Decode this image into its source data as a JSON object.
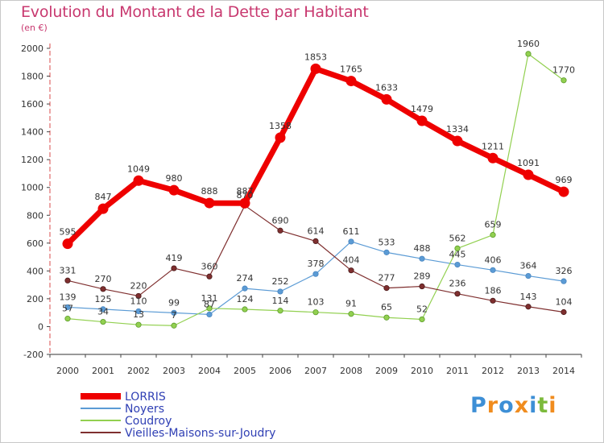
{
  "chart_data": {
    "type": "line",
    "title": "Evolution du Montant de la Dette par Habitant",
    "subtitle": "(en €)",
    "x": [
      "2000",
      "2001",
      "2002",
      "2003",
      "2004",
      "2005",
      "2006",
      "2007",
      "2008",
      "2009",
      "2010",
      "2011",
      "2012",
      "2013",
      "2014"
    ],
    "yticks": [
      "-200",
      "0",
      "200",
      "400",
      "600",
      "800",
      "1000",
      "1200",
      "1400",
      "1600",
      "1800",
      "2000"
    ],
    "ylim": [
      -200,
      2000
    ],
    "grid": false,
    "series": [
      {
        "name": "LORRIS",
        "color": "#ee0000",
        "values": [
          595,
          847,
          1049,
          980,
          888,
          887,
          1358,
          1853,
          1765,
          1633,
          1479,
          1334,
          1211,
          1091,
          969
        ],
        "labels": [
          "595",
          "847",
          "1049",
          "980",
          "888",
          "887",
          "1358",
          "1853",
          "1765",
          "1633",
          "1479",
          "1334",
          "1211",
          "1091",
          "969"
        ]
      },
      {
        "name": "Noyers",
        "color": "#5b9bd5",
        "values": [
          139,
          125,
          110,
          99,
          87,
          274,
          252,
          378,
          611,
          533,
          488,
          445,
          406,
          364,
          326
        ],
        "labels": [
          "139",
          "125",
          "110",
          "99",
          "87",
          "274",
          "252",
          "378",
          "611",
          "533",
          "488",
          "445",
          "406",
          "364",
          "326"
        ]
      },
      {
        "name": "Coudroy",
        "color": "#92d050",
        "values": [
          57,
          34,
          13,
          7,
          131,
          124,
          114,
          103,
          91,
          65,
          52,
          562,
          659,
          1960,
          1770
        ],
        "labels": [
          "57",
          "34",
          "13",
          "7",
          "131",
          "124",
          "114",
          "103",
          "91",
          "65",
          "52",
          "562",
          "659",
          "1960",
          "1770"
        ]
      },
      {
        "name": "Vieilles-Maisons-sur-Joudry",
        "color": "#7f2f2f",
        "values": [
          331,
          270,
          220,
          419,
          360,
          870,
          690,
          614,
          404,
          277,
          289,
          236,
          186,
          143,
          104
        ],
        "labels": [
          "331",
          "270",
          "220",
          "419",
          "360",
          "870",
          "690",
          "614",
          "404",
          "277",
          "289",
          "236",
          "186",
          "143",
          "104"
        ]
      }
    ]
  },
  "brand": {
    "text": "Proxiti",
    "letters": [
      "P",
      "r",
      "o",
      "x",
      "i",
      "t",
      "i"
    ],
    "colors": [
      "#3d8fd6",
      "#f08c1e",
      "#3d8fd6",
      "#f08c1e",
      "#3d8fd6",
      "#7cba3c",
      "#f08c1e"
    ]
  }
}
